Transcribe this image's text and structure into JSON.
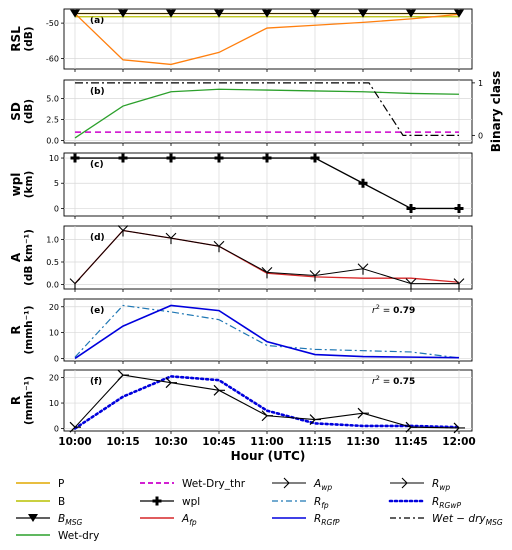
{
  "chart_data": [
    {
      "type": "line",
      "panel": "(a)",
      "ylabel": "RSL\n(dB)",
      "ylim": [
        -63,
        -46
      ],
      "yticks": [
        -50,
        -60
      ],
      "x_ticks": [
        "10:00",
        "10:15",
        "10:30",
        "10:45",
        "11:00",
        "11:15",
        "11:30",
        "11:45",
        "12:00"
      ],
      "series": [
        {
          "name": "P",
          "values": [
            -47.3,
            -47.3,
            -47.3,
            -47.3,
            -47.3,
            -47.3,
            -47.3,
            -47.3,
            -47.3
          ]
        },
        {
          "name": "B",
          "values": [
            -48.2,
            -48.2,
            -48.2,
            -48.2,
            -48.2,
            -48.2,
            -48.2,
            -48.2,
            -48.2
          ]
        },
        {
          "name": "B_MSG",
          "values": [
            -47.3,
            -47.3,
            -47.3,
            -47.3,
            -47.3,
            -47.3,
            -47.3,
            -47.3,
            -47.3
          ]
        },
        {
          "name": "orange",
          "values": [
            -47.3,
            -60.4,
            -61.7,
            -58.3,
            -51.4,
            -50.6,
            -49.8,
            -48.8,
            -47.5
          ]
        }
      ]
    },
    {
      "type": "line",
      "panel": "(b)",
      "ylabel": "SD\n(dB)",
      "ylabel_right": "Binary class",
      "ylim": [
        -0.3,
        7.2
      ],
      "yticks": [
        0.0,
        2.5,
        5.0
      ],
      "yticks_right": [
        0,
        1
      ],
      "series": [
        {
          "name": "Wet-dry",
          "values": [
            0.3,
            4.1,
            5.8,
            6.1,
            6.0,
            5.9,
            5.8,
            5.6,
            5.5
          ]
        },
        {
          "name": "Wet-Dry_thr",
          "values": [
            1.0,
            1.0,
            1.0,
            1.0,
            1.0,
            1.0,
            1.0,
            1.0,
            1.0
          ]
        },
        {
          "name": "Wet-dry_MSG",
          "values": [
            1,
            1,
            1,
            1,
            1,
            1,
            1,
            0,
            0
          ]
        }
      ]
    },
    {
      "type": "line",
      "panel": "(c)",
      "ylabel": "wpl\n(km)",
      "ylim": [
        -1.5,
        11
      ],
      "yticks": [
        0,
        5,
        10
      ],
      "series": [
        {
          "name": "wpl",
          "values": [
            10,
            10,
            10,
            10,
            10,
            10,
            5,
            0,
            0
          ]
        }
      ]
    },
    {
      "type": "line",
      "panel": "(d)",
      "ylabel": "A\n(dB km⁻¹)",
      "ylim": [
        -0.1,
        1.3
      ],
      "yticks": [
        0.0,
        0.5,
        1.0
      ],
      "series": [
        {
          "name": "A_wp",
          "values": [
            0.02,
            1.2,
            1.03,
            0.85,
            0.27,
            0.2,
            0.35,
            0.02,
            0.02
          ]
        },
        {
          "name": "A_fp",
          "values": [
            0.02,
            1.2,
            1.03,
            0.85,
            0.25,
            0.17,
            0.14,
            0.14,
            0.05
          ]
        }
      ]
    },
    {
      "type": "line",
      "panel": "(e)",
      "ylabel": "R\n(mmh⁻¹)",
      "ylim": [
        -1,
        23
      ],
      "yticks": [
        0,
        10,
        20
      ],
      "annotation": {
        "text": "r² = ",
        "value": "0.79"
      },
      "series": [
        {
          "name": "R_fp",
          "values": [
            0.5,
            20.5,
            18.0,
            15.0,
            5.0,
            3.5,
            3.0,
            2.5,
            0.2
          ]
        },
        {
          "name": "R_RG_fP",
          "values": [
            0.0,
            12.5,
            20.5,
            18.5,
            6.5,
            1.5,
            0.7,
            0.5,
            0.3
          ]
        }
      ]
    },
    {
      "type": "line",
      "panel": "(f)",
      "ylabel": "R\n(mmh⁻¹)",
      "ylim": [
        -1,
        23
      ],
      "yticks": [
        0,
        10,
        20
      ],
      "xlabel": "Hour (UTC)",
      "annotation": {
        "text": "r² = ",
        "value": "0.75"
      },
      "series": [
        {
          "name": "R_wp",
          "values": [
            0.5,
            21.0,
            18.0,
            15.0,
            5.0,
            3.5,
            6.0,
            0.5,
            0.2
          ]
        },
        {
          "name": "R_RG_wP",
          "values": [
            0.0,
            12.5,
            20.5,
            19.0,
            7.0,
            2.0,
            1.0,
            1.0,
            0.5
          ]
        }
      ]
    }
  ],
  "legend": [
    {
      "id": "P",
      "text": "P",
      "color": "#e0a800",
      "style": "solid"
    },
    {
      "id": "B",
      "text": "B",
      "color": "#b8c000",
      "style": "solid"
    },
    {
      "id": "BMSG",
      "text": "B",
      "sub": "MSG",
      "italic": true,
      "color": "#000000",
      "style": "triangle"
    },
    {
      "id": "WD",
      "text": "Wet-dry",
      "color": "#2ca02c",
      "style": "solid"
    },
    {
      "id": "THR",
      "text": "Wet-Dry_thr",
      "color": "#cc00cc",
      "style": "dashed"
    },
    {
      "id": "WPL",
      "text": "wpl",
      "color": "#000000",
      "style": "plus"
    },
    {
      "id": "AFP",
      "text": "A",
      "sub": "fp",
      "italic": true,
      "color": "#d62728",
      "style": "solid"
    },
    {
      "id": "AWP",
      "text": "A",
      "sub": "wp",
      "italic": true,
      "color": "#000000",
      "style": "tri"
    },
    {
      "id": "RFP",
      "text": "R",
      "sub": "fp",
      "italic": true,
      "color": "#1f77b4",
      "style": "dashdot"
    },
    {
      "id": "RRGFP",
      "text": "R",
      "sub": "RGfP",
      "italic": true,
      "color": "#0000dd",
      "style": "solid"
    },
    {
      "id": "RWP",
      "text": "R",
      "sub": "wp",
      "italic": true,
      "color": "#000000",
      "style": "tri"
    },
    {
      "id": "RRGWP",
      "text": "R",
      "sub": "RGwP",
      "italic": true,
      "color": "#0000dd",
      "style": "dotted"
    },
    {
      "id": "WDMSG",
      "text": "Wet − dry",
      "sub": "MSG",
      "italic": true,
      "color": "#000000",
      "style": "dashdot"
    }
  ],
  "colors": {
    "orange": "#ff7f0e",
    "green": "#2ca02c",
    "magenta": "#cc00cc",
    "red": "#d62728",
    "blue": "#0000dd",
    "steel": "#1f77b4",
    "gold": "#e0a800",
    "olive": "#b8c000"
  }
}
